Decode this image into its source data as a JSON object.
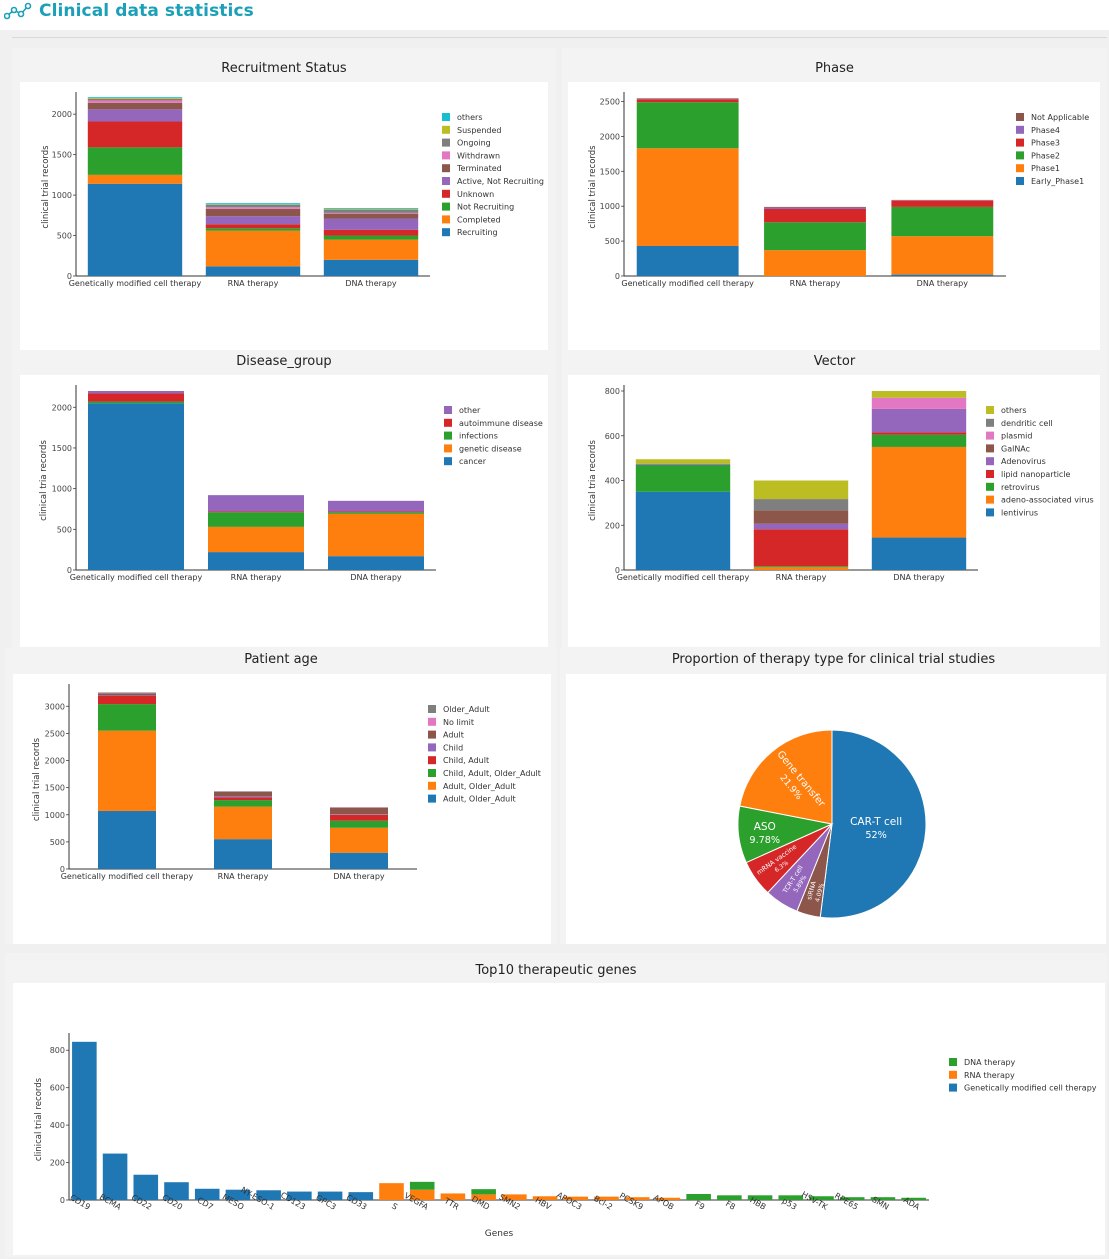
{
  "header": {
    "title": "Clinical data statistics",
    "icon": "network-nodes-icon",
    "accent_color": "#1ba0b8"
  },
  "colors": {
    "blue": "#1f77b4",
    "orange": "#ff7f0e",
    "green": "#2ca02c",
    "red": "#d62728",
    "purple": "#9467bd",
    "brown": "#8c564b",
    "pink": "#e377c2",
    "gray": "#7f7f7f",
    "olive": "#bcbd22",
    "cyan": "#17becf"
  },
  "chart_data": [
    {
      "id": "recruitment",
      "type": "bar",
      "stacked": true,
      "title": "Recruitment Status",
      "ylabel": "clinical trial records",
      "xlabel": "",
      "ylim": [
        0,
        2200
      ],
      "yticks": [
        0,
        500,
        1000,
        1500,
        2000
      ],
      "categories": [
        "Genetically modified cell therapy",
        "RNA therapy",
        "DNA therapy"
      ],
      "series": [
        {
          "name": "Recruiting",
          "color": "#1f77b4",
          "values": [
            1140,
            120,
            200
          ]
        },
        {
          "name": "Completed",
          "color": "#ff7f0e",
          "values": [
            110,
            440,
            250
          ]
        },
        {
          "name": "Not Recruiting",
          "color": "#2ca02c",
          "values": [
            340,
            30,
            50
          ]
        },
        {
          "name": "Unknown",
          "color": "#d62728",
          "values": [
            320,
            50,
            70
          ]
        },
        {
          "name": "Active, Not Recruiting",
          "color": "#9467bd",
          "values": [
            150,
            100,
            140
          ]
        },
        {
          "name": "Terminated",
          "color": "#8c564b",
          "values": [
            80,
            90,
            60
          ]
        },
        {
          "name": "Withdrawn",
          "color": "#e377c2",
          "values": [
            30,
            20,
            10
          ]
        },
        {
          "name": "Ongoing",
          "color": "#7f7f7f",
          "values": [
            20,
            30,
            40
          ]
        },
        {
          "name": "Suspended",
          "color": "#bcbd22",
          "values": [
            10,
            5,
            10
          ]
        },
        {
          "name": "others",
          "color": "#17becf",
          "values": [
            10,
            15,
            10
          ]
        }
      ]
    },
    {
      "id": "phase",
      "type": "bar",
      "stacked": true,
      "title": "Phase",
      "ylabel": "clinical trial records",
      "xlabel": "",
      "ylim": [
        0,
        2550
      ],
      "yticks": [
        0,
        500,
        1000,
        1500,
        2000,
        2500
      ],
      "categories": [
        "Genetically modified cell therapy",
        "RNA therapy",
        "DNA therapy"
      ],
      "series": [
        {
          "name": "Early_Phase1",
          "color": "#1f77b4",
          "values": [
            430,
            0,
            20
          ]
        },
        {
          "name": "Phase1",
          "color": "#ff7f0e",
          "values": [
            1400,
            370,
            550
          ]
        },
        {
          "name": "Phase2",
          "color": "#2ca02c",
          "values": [
            660,
            400,
            420
          ]
        },
        {
          "name": "Phase3",
          "color": "#d62728",
          "values": [
            40,
            190,
            90
          ]
        },
        {
          "name": "Phase4",
          "color": "#9467bd",
          "values": [
            5,
            20,
            5
          ]
        },
        {
          "name": "Not Applicable",
          "color": "#8c564b",
          "values": [
            10,
            10,
            5
          ]
        }
      ]
    },
    {
      "id": "disease",
      "type": "bar",
      "stacked": true,
      "title": "Disease_group",
      "ylabel": "clinical tria records",
      "xlabel": "",
      "ylim": [
        0,
        2200
      ],
      "yticks": [
        0,
        500,
        1000,
        1500,
        2000
      ],
      "categories": [
        "Genetically modified cell therapy",
        "RNA therapy",
        "DNA therapy"
      ],
      "series": [
        {
          "name": "cancer",
          "color": "#1f77b4",
          "values": [
            2050,
            220,
            170
          ]
        },
        {
          "name": "genetic disease",
          "color": "#ff7f0e",
          "values": [
            0,
            310,
            520
          ]
        },
        {
          "name": "infections",
          "color": "#2ca02c",
          "values": [
            20,
            180,
            20
          ]
        },
        {
          "name": "autoimmune disease",
          "color": "#d62728",
          "values": [
            100,
            10,
            10
          ]
        },
        {
          "name": "other",
          "color": "#9467bd",
          "values": [
            30,
            200,
            130
          ]
        }
      ]
    },
    {
      "id": "vector",
      "type": "bar",
      "stacked": true,
      "title": "Vector",
      "ylabel": "clinical tria records",
      "xlabel": "",
      "ylim": [
        0,
        800
      ],
      "yticks": [
        0,
        200,
        400,
        600,
        800
      ],
      "categories": [
        "Genetically modified cell therapy",
        "RNA therapy",
        "DNA therapy"
      ],
      "series": [
        {
          "name": "lentivirus",
          "color": "#1f77b4",
          "values": [
            350,
            0,
            145
          ]
        },
        {
          "name": "adeno-associated virus",
          "color": "#ff7f0e",
          "values": [
            0,
            12,
            405
          ]
        },
        {
          "name": "retrovirus",
          "color": "#2ca02c",
          "values": [
            120,
            5,
            55
          ]
        },
        {
          "name": "lipid nanoparticle",
          "color": "#d62728",
          "values": [
            0,
            165,
            10
          ]
        },
        {
          "name": "Adenovirus",
          "color": "#9467bd",
          "values": [
            5,
            25,
            105
          ]
        },
        {
          "name": "GalNAc",
          "color": "#8c564b",
          "values": [
            0,
            60,
            0
          ]
        },
        {
          "name": "plasmid",
          "color": "#e377c2",
          "values": [
            0,
            0,
            50
          ]
        },
        {
          "name": "dendritic cell",
          "color": "#7f7f7f",
          "values": [
            0,
            50,
            0
          ]
        },
        {
          "name": "others",
          "color": "#bcbd22",
          "values": [
            20,
            83,
            30
          ]
        }
      ]
    },
    {
      "id": "age",
      "type": "bar",
      "stacked": true,
      "title": "Patient age",
      "ylabel": "clinical trial records",
      "xlabel": "",
      "ylim": [
        0,
        3300
      ],
      "yticks": [
        0,
        500,
        1000,
        1500,
        2000,
        2500,
        3000
      ],
      "categories": [
        "Genetically modified cell therapy",
        "RNA therapy",
        "DNA therapy"
      ],
      "series": [
        {
          "name": "Adult, Older_Adult",
          "color": "#1f77b4",
          "values": [
            1070,
            550,
            300
          ]
        },
        {
          "name": "Adult, Older_Adult",
          "color": "#ff7f0e",
          "values": [
            1480,
            600,
            460
          ]
        },
        {
          "name": "Child, Adult, Older_Adult",
          "color": "#2ca02c",
          "values": [
            490,
            120,
            130
          ]
        },
        {
          "name": "Child, Adult",
          "color": "#d62728",
          "values": [
            150,
            50,
            110
          ]
        },
        {
          "name": "Child",
          "color": "#9467bd",
          "values": [
            10,
            20,
            10
          ]
        },
        {
          "name": "Adult",
          "color": "#8c564b",
          "values": [
            40,
            80,
            120
          ]
        },
        {
          "name": "No limit",
          "color": "#e377c2",
          "values": [
            5,
            5,
            5
          ]
        },
        {
          "name": "Older_Adult",
          "color": "#7f7f7f",
          "values": [
            10,
            10,
            5
          ]
        }
      ]
    },
    {
      "id": "pie",
      "type": "pie",
      "title": "Proportion of therapy type for clinical trial studies",
      "slices": [
        {
          "label": "CAR-T cell",
          "percent": "52%",
          "value": 52,
          "color": "#1f77b4"
        },
        {
          "label": "siRNA",
          "percent": "4.09%",
          "value": 4.09,
          "color": "#8c564b"
        },
        {
          "label": "TCR-T cell",
          "percent": "5.89%",
          "value": 5.89,
          "color": "#9467bd"
        },
        {
          "label": "mRNA vaccine",
          "percent": "6.3%",
          "value": 6.3,
          "color": "#d62728"
        },
        {
          "label": "ASO",
          "percent": "9.78%",
          "value": 9.78,
          "color": "#2ca02c"
        },
        {
          "label": "Gene transfer",
          "percent": "21.9%",
          "value": 21.94,
          "color": "#ff7f0e"
        }
      ]
    },
    {
      "id": "genes",
      "type": "bar",
      "stacked": true,
      "title": "Top10 therapeutic genes",
      "ylabel": "clinical trial records",
      "xlabel": "Genes",
      "ylim": [
        0,
        860
      ],
      "yticks": [
        0,
        200,
        400,
        600,
        800
      ],
      "categories": [
        "CD19",
        "BCMA",
        "CD22",
        "CD20",
        "CD7",
        "MESO",
        "NY-ESO-1",
        "CD123",
        "GPC3",
        "CD33",
        "S",
        "VEGFA",
        "TTR",
        "DMD",
        "SMN2",
        "HBV",
        "APOC3",
        "Bcl-2",
        "PCSK9",
        "APOB",
        "F9",
        "F8",
        "HBB",
        "p53",
        "HSV-TK",
        "RPE65",
        "SMN",
        "ADA"
      ],
      "series": [
        {
          "name": "Genetically modified cell therapy",
          "color": "#1f77b4",
          "values": [
            845,
            248,
            135,
            95,
            60,
            55,
            52,
            45,
            45,
            42,
            0,
            0,
            0,
            0,
            0,
            0,
            0,
            0,
            0,
            0,
            0,
            0,
            0,
            0,
            0,
            0,
            0,
            0
          ]
        },
        {
          "name": "RNA therapy",
          "color": "#ff7f0e",
          "values": [
            0,
            0,
            0,
            0,
            0,
            0,
            0,
            0,
            0,
            0,
            90,
            55,
            35,
            30,
            30,
            20,
            18,
            18,
            15,
            12,
            0,
            0,
            0,
            0,
            0,
            0,
            0,
            0
          ]
        },
        {
          "name": "DNA therapy",
          "color": "#2ca02c",
          "values": [
            0,
            0,
            0,
            0,
            0,
            0,
            0,
            0,
            0,
            0,
            0,
            42,
            0,
            28,
            0,
            0,
            0,
            0,
            0,
            0,
            32,
            25,
            25,
            25,
            20,
            15,
            15,
            12
          ]
        }
      ]
    }
  ]
}
